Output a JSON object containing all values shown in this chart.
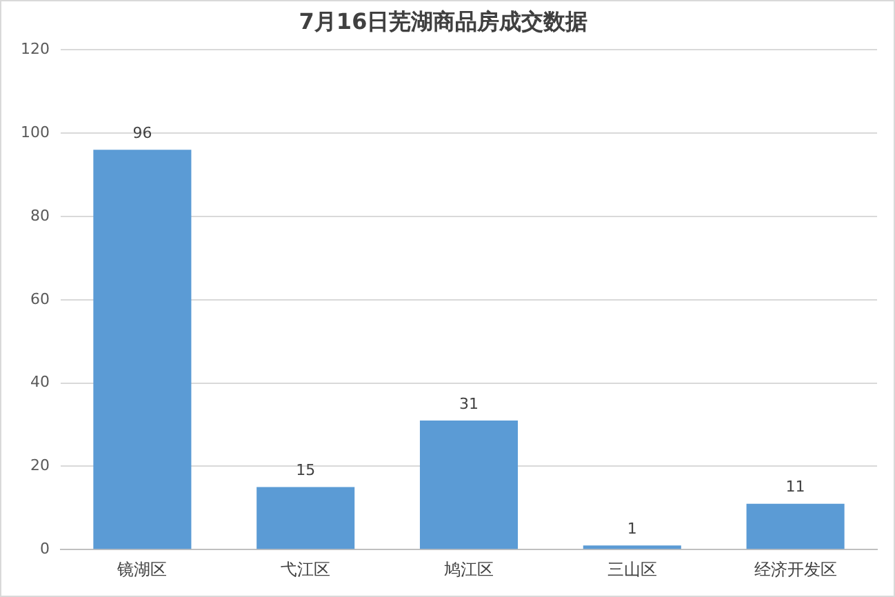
{
  "chart_data": {
    "type": "bar",
    "title": "7月16日芜湖商品房成交数据",
    "categories": [
      "镜湖区",
      "弋江区",
      "鸠江区",
      "三山区",
      "经济开发区"
    ],
    "values": [
      96,
      15,
      31,
      1,
      11
    ],
    "color": "#5b9bd5",
    "ylim": [
      0,
      120
    ],
    "yticks": [
      0,
      20,
      40,
      60,
      80,
      100,
      120
    ],
    "grid": "y",
    "data_labels": true
  }
}
